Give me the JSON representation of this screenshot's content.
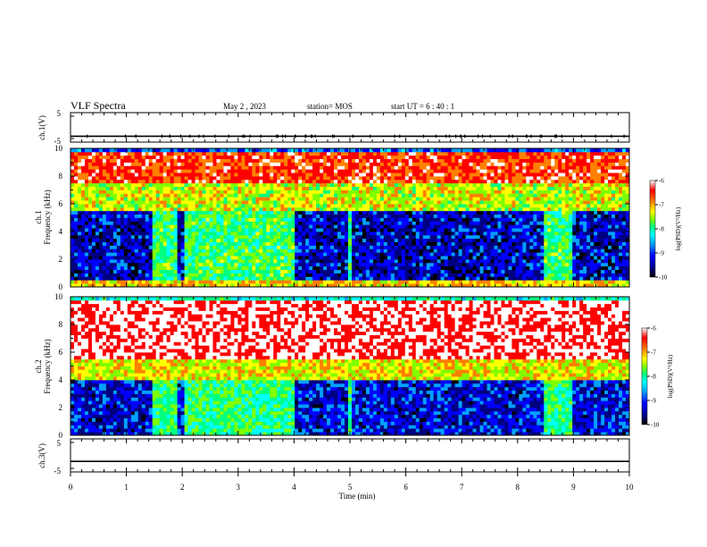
{
  "header": {
    "title": "VLF Spectra",
    "date": "May 2 , 2023",
    "station": "station= MOS",
    "start": "start UT =  6 : 40 : 1"
  },
  "chart_data": [
    {
      "type": "line",
      "panel": "ch1 waveform",
      "ylabel": "ch.1(V)",
      "ylim": [
        -5,
        5
      ],
      "y_ticks": [
        "5",
        "-5"
      ],
      "series_value": -3,
      "xlim": [
        0,
        10
      ]
    },
    {
      "type": "heatmap",
      "panel": "ch1 spectrogram",
      "ylabel": "ch.1\nFrequency (kHz)",
      "ylim": [
        0,
        10
      ],
      "y_ticks": [
        "0",
        "2",
        "4",
        "6",
        "8",
        "10"
      ],
      "xlim": [
        0,
        10
      ],
      "colorbar": {
        "range": [
          -10,
          -6
        ],
        "ticks": [
          "-6",
          "-7",
          "-8",
          "-9",
          "-10"
        ],
        "label": "log(PSD)(V²/Hz)"
      },
      "quiet_segments": [
        [
          1.48,
          1.92
        ],
        [
          2.03,
          4.0
        ],
        [
          4.95,
          5.0
        ],
        [
          8.45,
          8.98
        ]
      ]
    },
    {
      "type": "heatmap",
      "panel": "ch2 spectrogram",
      "ylabel": "ch.2\nFrequency (kHz)",
      "ylim": [
        0,
        10
      ],
      "y_ticks": [
        "0",
        "2",
        "4",
        "6",
        "8",
        "10"
      ],
      "xlim": [
        0,
        10
      ],
      "colorbar": {
        "range": [
          -10,
          -6
        ],
        "ticks": [
          "-6",
          "-7",
          "-8",
          "-9",
          "-10"
        ],
        "label": "log(PSD)(V²/Hz)"
      },
      "quiet_segments": [
        [
          1.48,
          1.92
        ],
        [
          2.03,
          4.0
        ],
        [
          4.95,
          5.0
        ],
        [
          8.45,
          8.98
        ]
      ]
    },
    {
      "type": "line",
      "panel": "ch3 waveform",
      "ylabel": "ch.3(V)",
      "ylim": [
        -5,
        5
      ],
      "y_ticks": [
        "5",
        "-5"
      ],
      "series_value": -1.8,
      "xlim": [
        0,
        10
      ],
      "xlabel": "Time (min)",
      "x_ticks": [
        "0",
        "1",
        "2",
        "3",
        "4",
        "5",
        "6",
        "7",
        "8",
        "9",
        "10"
      ]
    }
  ],
  "colors": {
    "frame": "#000000",
    "background": "#ffffff",
    "colormap": [
      "#000000",
      "#000080",
      "#0000ff",
      "#00a0ff",
      "#00ffff",
      "#00ff80",
      "#80ff00",
      "#ffff00",
      "#ff8000",
      "#ff0000",
      "#ffffff"
    ]
  }
}
